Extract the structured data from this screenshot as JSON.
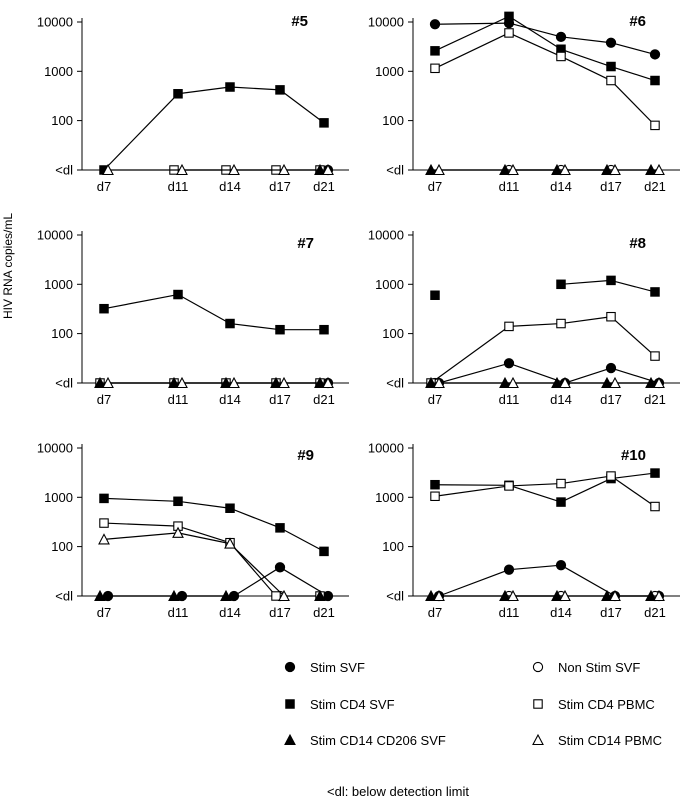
{
  "figure": {
    "ylabel": "HIV RNA copies/mL",
    "footnote": "<dl: below detection limit",
    "y_ticks": [
      "10000",
      "1000",
      "100",
      "<dl"
    ],
    "x_ticks": [
      "d7",
      "d11",
      "d14",
      "d17",
      "d21"
    ]
  },
  "legend": [
    {
      "key": "stim_svf",
      "label": "Stim SVF",
      "marker": "circle",
      "fill": "#000000"
    },
    {
      "key": "non_stim_svf",
      "label": "Non Stim SVF",
      "marker": "circle",
      "fill": "#ffffff"
    },
    {
      "key": "stim_cd4_svf",
      "label": "Stim CD4 SVF",
      "marker": "square",
      "fill": "#000000"
    },
    {
      "key": "stim_cd4_pbmc",
      "label": "Stim CD4 PBMC",
      "marker": "square",
      "fill": "#ffffff"
    },
    {
      "key": "stim_cd14_cd206_svf",
      "label": "Stim CD14 CD206 SVF",
      "marker": "triangle",
      "fill": "#000000"
    },
    {
      "key": "stim_cd14_pbmc",
      "label": "Stim CD14 PBMC",
      "marker": "triangle",
      "fill": "#ffffff"
    }
  ],
  "chart_data": [
    {
      "type": "line",
      "title": "#5",
      "y_scale": "log",
      "ylim": [
        "<dl",
        10000
      ],
      "categories": [
        "d7",
        "d11",
        "d14",
        "d17",
        "d21"
      ],
      "series": [
        {
          "name": "Stim SVF",
          "key": "stim_svf",
          "values": [
            null,
            null,
            null,
            null,
            "<dl"
          ]
        },
        {
          "name": "Non Stim SVF",
          "key": "non_stim_svf",
          "values": [
            null,
            null,
            null,
            null,
            null
          ]
        },
        {
          "name": "Stim CD4 SVF",
          "key": "stim_cd4_svf",
          "values": [
            "<dl",
            350,
            480,
            420,
            90
          ]
        },
        {
          "name": "Stim CD4 PBMC",
          "key": "stim_cd4_pbmc",
          "values": [
            null,
            "<dl",
            "<dl",
            "<dl",
            "<dl"
          ]
        },
        {
          "name": "Stim CD14 CD206 SVF",
          "key": "stim_cd14_cd206_svf",
          "values": [
            null,
            null,
            null,
            null,
            "<dl"
          ]
        },
        {
          "name": "Stim CD14 PBMC",
          "key": "stim_cd14_pbmc",
          "values": [
            "<dl",
            "<dl",
            "<dl",
            "<dl",
            "<dl"
          ]
        }
      ]
    },
    {
      "type": "line",
      "title": "#6",
      "y_scale": "log",
      "ylim": [
        "<dl",
        10000
      ],
      "categories": [
        "d7",
        "d11",
        "d14",
        "d17",
        "d21"
      ],
      "series": [
        {
          "name": "Stim SVF",
          "key": "stim_svf",
          "values": [
            9000,
            9500,
            5000,
            3800,
            2200
          ]
        },
        {
          "name": "Non Stim SVF",
          "key": "non_stim_svf",
          "values": [
            null,
            "<dl",
            "<dl",
            "<dl",
            null
          ]
        },
        {
          "name": "Stim CD4 SVF",
          "key": "stim_cd4_svf",
          "values": [
            2600,
            13000,
            2800,
            1250,
            650
          ]
        },
        {
          "name": "Stim CD4 PBMC",
          "key": "stim_cd4_pbmc",
          "values": [
            1150,
            6000,
            2000,
            650,
            80
          ]
        },
        {
          "name": "Stim CD14 CD206 SVF",
          "key": "stim_cd14_cd206_svf",
          "values": [
            "<dl",
            "<dl",
            "<dl",
            "<dl",
            "<dl"
          ]
        },
        {
          "name": "Stim CD14 PBMC",
          "key": "stim_cd14_pbmc",
          "values": [
            "<dl",
            "<dl",
            "<dl",
            "<dl",
            "<dl"
          ]
        }
      ]
    },
    {
      "type": "line",
      "title": "#7",
      "y_scale": "log",
      "ylim": [
        "<dl",
        10000
      ],
      "categories": [
        "d7",
        "d11",
        "d14",
        "d17",
        "d21"
      ],
      "series": [
        {
          "name": "Stim SVF",
          "key": "stim_svf",
          "values": [
            null,
            null,
            null,
            null,
            "<dl"
          ]
        },
        {
          "name": "Non Stim SVF",
          "key": "non_stim_svf",
          "values": [
            null,
            null,
            null,
            null,
            null
          ]
        },
        {
          "name": "Stim CD4 SVF",
          "key": "stim_cd4_svf",
          "values": [
            320,
            620,
            160,
            120,
            120
          ]
        },
        {
          "name": "Stim CD4 PBMC",
          "key": "stim_cd4_pbmc",
          "values": [
            "<dl",
            "<dl",
            "<dl",
            "<dl",
            "<dl"
          ]
        },
        {
          "name": "Stim CD14 CD206 SVF",
          "key": "stim_cd14_cd206_svf",
          "values": [
            "<dl",
            "<dl",
            "<dl",
            "<dl",
            "<dl"
          ]
        },
        {
          "name": "Stim CD14 PBMC",
          "key": "stim_cd14_pbmc",
          "values": [
            "<dl",
            "<dl",
            "<dl",
            "<dl",
            "<dl"
          ]
        }
      ]
    },
    {
      "type": "line",
      "title": "#8",
      "y_scale": "log",
      "ylim": [
        "<dl",
        10000
      ],
      "categories": [
        "d7",
        "d11",
        "d14",
        "d17",
        "d21"
      ],
      "series": [
        {
          "name": "Stim SVF",
          "key": "stim_svf",
          "values": [
            "<dl",
            25,
            "<dl",
            20,
            "<dl"
          ]
        },
        {
          "name": "Non Stim SVF",
          "key": "non_stim_svf",
          "values": [
            "<dl",
            null,
            null,
            null,
            null
          ]
        },
        {
          "name": "Stim CD4 SVF",
          "key": "stim_cd4_svf",
          "values": [
            600,
            null,
            1000,
            1200,
            700
          ]
        },
        {
          "name": "Stim CD4 PBMC",
          "key": "stim_cd4_pbmc",
          "values": [
            "<dl",
            140,
            160,
            220,
            35
          ]
        },
        {
          "name": "Stim CD14 CD206 SVF",
          "key": "stim_cd14_cd206_svf",
          "values": [
            "<dl",
            "<dl",
            "<dl",
            "<dl",
            "<dl"
          ]
        },
        {
          "name": "Stim CD14 PBMC",
          "key": "stim_cd14_pbmc",
          "values": [
            "<dl",
            "<dl",
            "<dl",
            "<dl",
            "<dl"
          ]
        }
      ]
    },
    {
      "type": "line",
      "title": "#9",
      "y_scale": "log",
      "ylim": [
        "<dl",
        10000
      ],
      "categories": [
        "d7",
        "d11",
        "d14",
        "d17",
        "d21"
      ],
      "series": [
        {
          "name": "Stim SVF",
          "key": "stim_svf",
          "values": [
            "<dl",
            "<dl",
            "<dl",
            38,
            "<dl"
          ]
        },
        {
          "name": "Non Stim SVF",
          "key": "non_stim_svf",
          "values": [
            null,
            null,
            null,
            "<dl",
            null
          ]
        },
        {
          "name": "Stim CD4 SVF",
          "key": "stim_cd4_svf",
          "values": [
            950,
            830,
            600,
            240,
            80
          ]
        },
        {
          "name": "Stim CD4 PBMC",
          "key": "stim_cd4_pbmc",
          "values": [
            300,
            260,
            120,
            "<dl",
            "<dl"
          ]
        },
        {
          "name": "Stim CD14 CD206 SVF",
          "key": "stim_cd14_cd206_svf",
          "values": [
            "<dl",
            "<dl",
            "<dl",
            null,
            "<dl"
          ]
        },
        {
          "name": "Stim CD14 PBMC",
          "key": "stim_cd14_pbmc",
          "values": [
            140,
            190,
            115,
            "<dl",
            null
          ]
        }
      ]
    },
    {
      "type": "line",
      "title": "#10",
      "y_scale": "log",
      "ylim": [
        "<dl",
        10000
      ],
      "categories": [
        "d7",
        "d11",
        "d14",
        "d17",
        "d21"
      ],
      "series": [
        {
          "name": "Stim SVF",
          "key": "stim_svf",
          "values": [
            "<dl",
            34,
            42,
            "<dl",
            "<dl"
          ]
        },
        {
          "name": "Non Stim SVF",
          "key": "non_stim_svf",
          "values": [
            null,
            "<dl",
            "<dl",
            null,
            "<dl"
          ]
        },
        {
          "name": "Stim CD4 SVF",
          "key": "stim_cd4_svf",
          "values": [
            1800,
            1750,
            800,
            2400,
            3100
          ]
        },
        {
          "name": "Stim CD4 PBMC",
          "key": "stim_cd4_pbmc",
          "values": [
            1050,
            1700,
            1900,
            2700,
            650
          ]
        },
        {
          "name": "Stim CD14 CD206 SVF",
          "key": "stim_cd14_cd206_svf",
          "values": [
            "<dl",
            "<dl",
            "<dl",
            "<dl",
            "<dl"
          ]
        },
        {
          "name": "Stim CD14 PBMC",
          "key": "stim_cd14_pbmc",
          "values": [
            "<dl",
            "<dl",
            "<dl",
            "<dl",
            "<dl"
          ]
        }
      ]
    }
  ]
}
